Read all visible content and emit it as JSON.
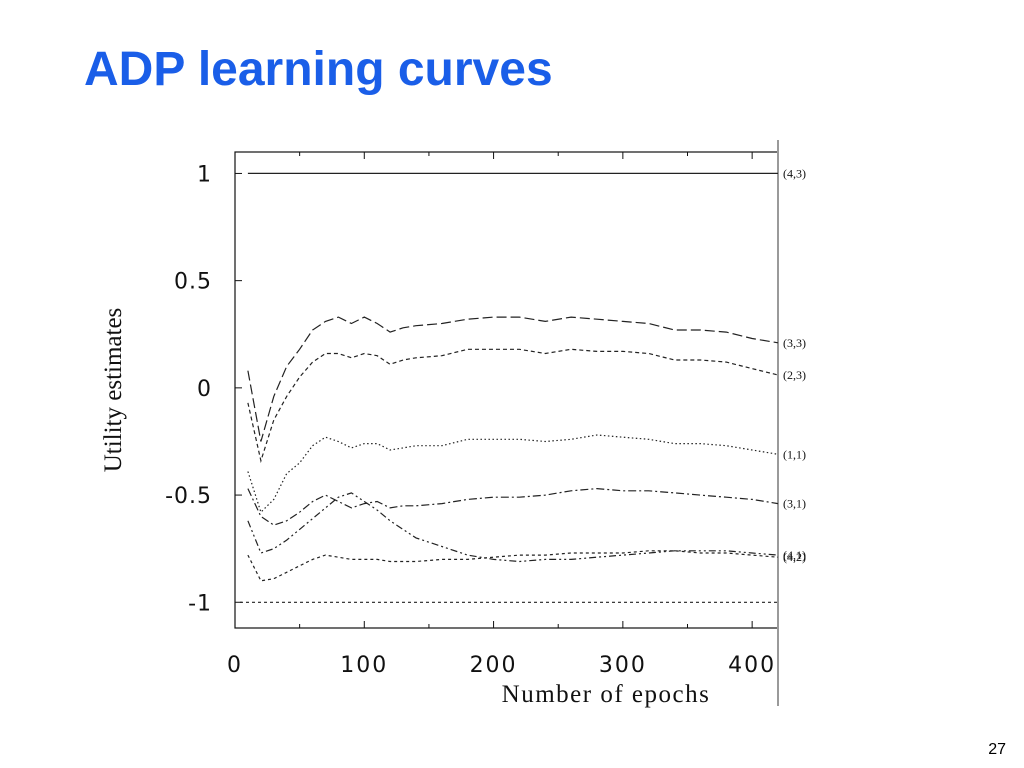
{
  "slide": {
    "title": "ADP learning curves",
    "page_number": "27"
  },
  "chart_data": {
    "type": "line",
    "title": "",
    "xlabel": "Number of epochs",
    "ylabel": "Utility estimates",
    "xlim": [
      0,
      420
    ],
    "ylim": [
      -1.12,
      1.1
    ],
    "xticks": [
      0,
      100,
      200,
      300,
      400
    ],
    "xtick_labels": [
      "0",
      "100",
      "200",
      "300",
      "400"
    ],
    "yticks": [
      1,
      0.5,
      0,
      -0.5,
      -1
    ],
    "ytick_labels": [
      "1",
      "0.5",
      "0",
      "-0.5",
      "-1"
    ],
    "grid": false,
    "legend": "right-of-plot labels",
    "series": [
      {
        "name": "(4,3)",
        "dash": "solid",
        "x": [
          10,
          420
        ],
        "y": [
          1.0,
          1.0
        ]
      },
      {
        "name": "(3,3)",
        "dash": "long-dash",
        "x": [
          10,
          20,
          30,
          40,
          50,
          60,
          70,
          80,
          90,
          100,
          110,
          120,
          130,
          140,
          160,
          180,
          200,
          220,
          240,
          260,
          280,
          300,
          320,
          340,
          360,
          380,
          400,
          420
        ],
        "y": [
          0.08,
          -0.25,
          -0.04,
          0.1,
          0.18,
          0.27,
          0.31,
          0.33,
          0.3,
          0.33,
          0.3,
          0.26,
          0.28,
          0.29,
          0.3,
          0.32,
          0.33,
          0.33,
          0.31,
          0.33,
          0.32,
          0.31,
          0.3,
          0.27,
          0.27,
          0.26,
          0.23,
          0.21
        ]
      },
      {
        "name": "(2,3)",
        "dash": "short-dash",
        "x": [
          10,
          20,
          30,
          40,
          50,
          60,
          70,
          80,
          90,
          100,
          110,
          120,
          130,
          140,
          160,
          180,
          200,
          220,
          240,
          260,
          280,
          300,
          320,
          340,
          360,
          380,
          400,
          420
        ],
        "y": [
          -0.07,
          -0.34,
          -0.15,
          -0.04,
          0.05,
          0.12,
          0.16,
          0.16,
          0.14,
          0.16,
          0.15,
          0.11,
          0.13,
          0.14,
          0.15,
          0.18,
          0.18,
          0.18,
          0.16,
          0.18,
          0.17,
          0.17,
          0.16,
          0.13,
          0.13,
          0.12,
          0.09,
          0.06
        ]
      },
      {
        "name": "(1,1)",
        "dash": "dotted",
        "x": [
          10,
          20,
          30,
          40,
          50,
          60,
          70,
          80,
          90,
          100,
          110,
          120,
          130,
          140,
          160,
          180,
          200,
          220,
          240,
          260,
          280,
          300,
          320,
          340,
          360,
          380,
          400,
          420
        ],
        "y": [
          -0.39,
          -0.58,
          -0.52,
          -0.4,
          -0.35,
          -0.27,
          -0.23,
          -0.25,
          -0.28,
          -0.26,
          -0.26,
          -0.29,
          -0.28,
          -0.27,
          -0.27,
          -0.24,
          -0.24,
          -0.24,
          -0.25,
          -0.24,
          -0.22,
          -0.23,
          -0.24,
          -0.26,
          -0.26,
          -0.27,
          -0.29,
          -0.31
        ]
      },
      {
        "name": "(3,1)",
        "dash": "dash-dot",
        "x": [
          10,
          20,
          30,
          40,
          50,
          60,
          70,
          80,
          90,
          100,
          110,
          120,
          130,
          140,
          160,
          180,
          200,
          220,
          240,
          260,
          280,
          300,
          320,
          340,
          360,
          380,
          400,
          420
        ],
        "y": [
          -0.47,
          -0.6,
          -0.64,
          -0.62,
          -0.58,
          -0.53,
          -0.5,
          -0.53,
          -0.56,
          -0.54,
          -0.53,
          -0.56,
          -0.55,
          -0.55,
          -0.54,
          -0.52,
          -0.51,
          -0.51,
          -0.5,
          -0.48,
          -0.47,
          -0.48,
          -0.48,
          -0.49,
          -0.5,
          -0.51,
          -0.52,
          -0.54
        ]
      },
      {
        "name": "(4,1)",
        "dash": "dash-dot-dot",
        "x": [
          10,
          20,
          30,
          40,
          50,
          60,
          70,
          80,
          90,
          100,
          110,
          120,
          130,
          140,
          160,
          180,
          200,
          220,
          240,
          260,
          280,
          300,
          320,
          340,
          360,
          380,
          400,
          420
        ],
        "y": [
          -0.62,
          -0.77,
          -0.75,
          -0.71,
          -0.66,
          -0.61,
          -0.56,
          -0.51,
          -0.49,
          -0.53,
          -0.57,
          -0.62,
          -0.66,
          -0.7,
          -0.74,
          -0.78,
          -0.8,
          -0.81,
          -0.8,
          -0.8,
          -0.79,
          -0.78,
          -0.77,
          -0.76,
          -0.76,
          -0.76,
          -0.77,
          -0.78
        ]
      },
      {
        "name": "(4,2)",
        "dash": "fine-dash",
        "x": [
          10,
          20,
          30,
          40,
          50,
          60,
          70,
          80,
          90,
          100,
          110,
          120,
          130,
          140,
          160,
          180,
          200,
          220,
          240,
          260,
          280,
          300,
          320,
          340,
          360,
          380,
          400,
          420
        ],
        "y": [
          -0.78,
          -0.9,
          -0.89,
          -0.86,
          -0.83,
          -0.8,
          -0.78,
          -0.79,
          -0.8,
          -0.8,
          -0.8,
          -0.81,
          -0.81,
          -0.81,
          -0.8,
          -0.8,
          -0.79,
          -0.78,
          -0.78,
          -0.77,
          -0.77,
          -0.77,
          -0.76,
          -0.76,
          -0.77,
          -0.77,
          -0.78,
          -0.79
        ]
      }
    ],
    "reference_line": {
      "y": -1.0,
      "dash": "dashed"
    }
  }
}
